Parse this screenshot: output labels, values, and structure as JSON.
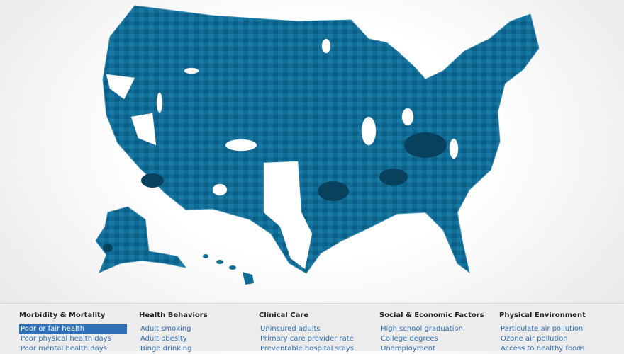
{
  "menu": {
    "columns": [
      {
        "heading": "Morbidity & Mortality",
        "items": [
          "Poor or fair health",
          "Poor physical health days",
          "Poor mental health days"
        ]
      },
      {
        "heading": "Health Behaviors",
        "items": [
          "Adult smoking",
          "Adult obesity",
          "Binge drinking"
        ]
      },
      {
        "heading": "Clinical Care",
        "items": [
          "Uninsured adults",
          "Primary care provider rate",
          "Preventable hospital stays"
        ]
      },
      {
        "heading": "Social & Economic Factors",
        "items": [
          "High school graduation",
          "College degrees",
          "Unemployment"
        ]
      },
      {
        "heading": "Physical Environment",
        "items": [
          "Particulate air pollution",
          "Ozone air pollution",
          "Access to healthy foods"
        ]
      }
    ]
  }
}
